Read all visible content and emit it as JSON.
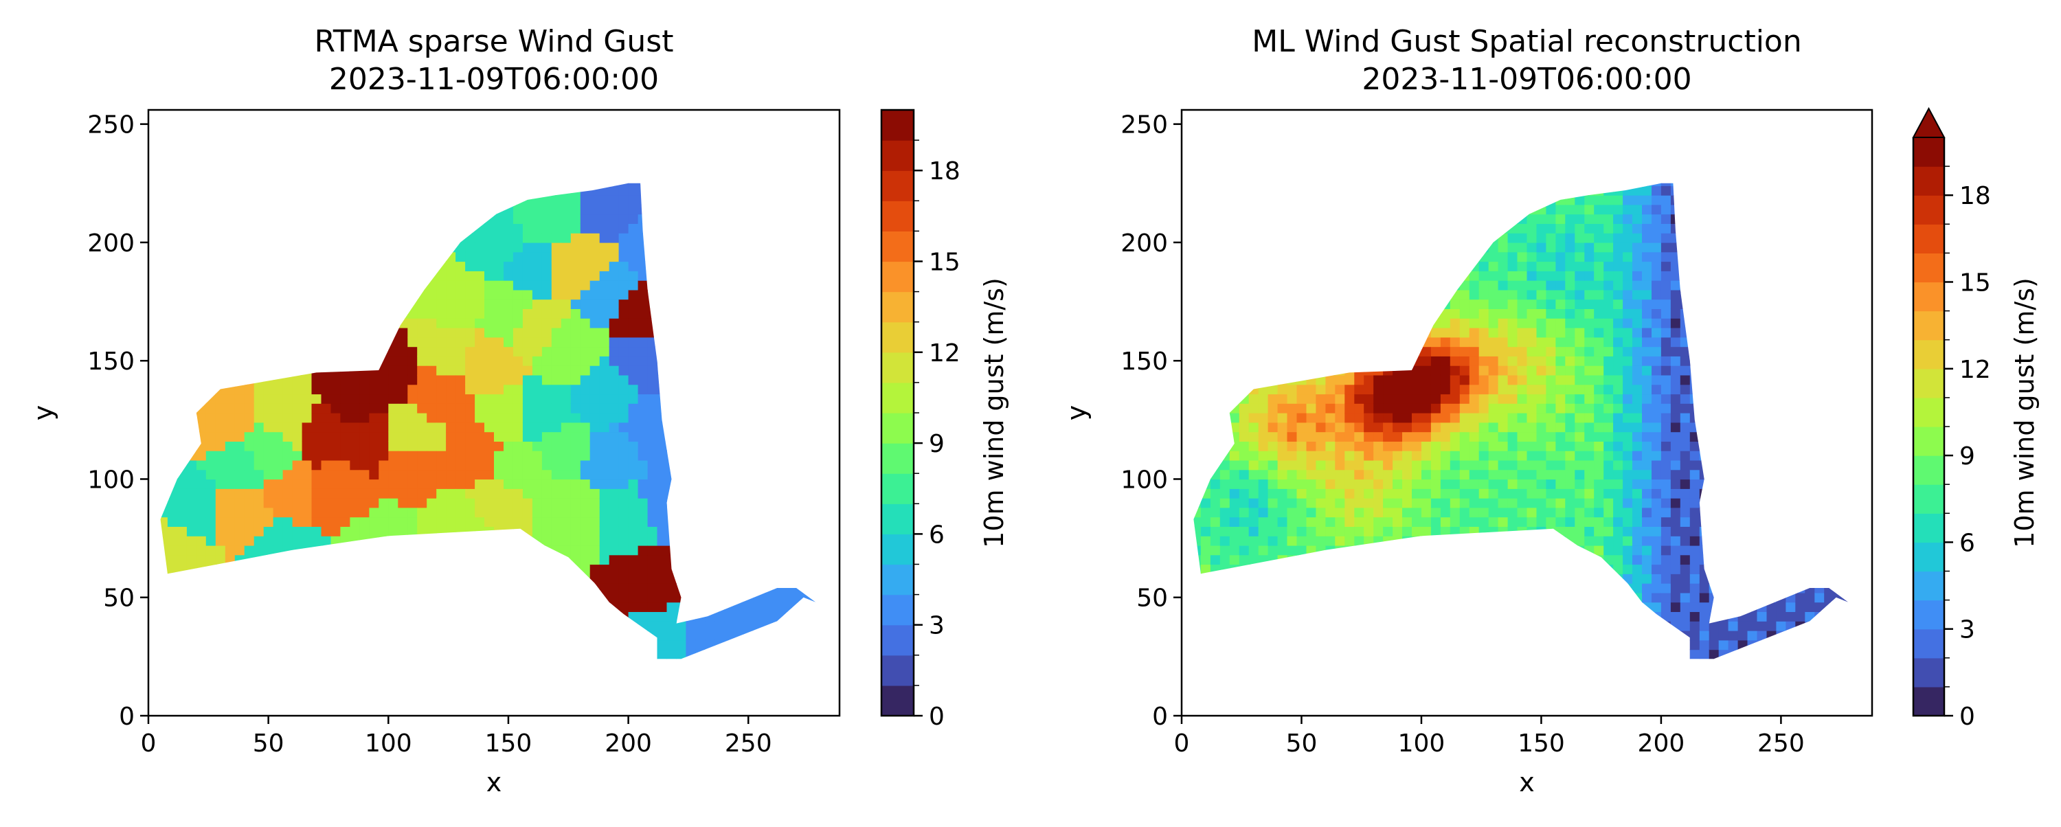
{
  "chart_data": [
    {
      "type": "heatmap",
      "title": "RTMA sparse Wind Gust",
      "subtitle": "2023-11-09T06:00:00",
      "xlabel": "x",
      "ylabel": "y",
      "xlim": [
        0,
        288
      ],
      "ylim": [
        0,
        256
      ],
      "xticks": [
        "0",
        "50",
        "100",
        "150",
        "200",
        "250"
      ],
      "yticks": [
        "0",
        "50",
        "100",
        "150",
        "200",
        "250"
      ],
      "colorbar": {
        "label": "10m wind gust (m/s)",
        "range": [
          0,
          20
        ],
        "ticks": [
          "0",
          "3",
          "6",
          "9",
          "12",
          "15",
          "18"
        ],
        "extend_max": false
      },
      "field": "sparse",
      "regions": [
        {
          "x": 85,
          "y": 133,
          "v": 19.5
        },
        {
          "x": 100,
          "y": 143,
          "v": 19
        },
        {
          "x": 72,
          "y": 120,
          "v": 18.5
        },
        {
          "x": 90,
          "y": 117,
          "v": 18.5
        },
        {
          "x": 190,
          "y": 30,
          "v": 19.5
        },
        {
          "x": 210,
          "y": 55,
          "v": 19
        },
        {
          "x": 205,
          "y": 170,
          "v": 19
        },
        {
          "x": 120,
          "y": 135,
          "v": 15
        },
        {
          "x": 110,
          "y": 105,
          "v": 15.5
        },
        {
          "x": 135,
          "y": 110,
          "v": 15
        },
        {
          "x": 80,
          "y": 95,
          "v": 15
        },
        {
          "x": 60,
          "y": 95,
          "v": 14
        },
        {
          "x": 40,
          "y": 85,
          "v": 13
        },
        {
          "x": 30,
          "y": 125,
          "v": 13
        },
        {
          "x": 140,
          "y": 150,
          "v": 12.5
        },
        {
          "x": 180,
          "y": 190,
          "v": 12
        },
        {
          "x": 12,
          "y": 70,
          "v": 11.5
        },
        {
          "x": 60,
          "y": 125,
          "v": 11
        },
        {
          "x": 150,
          "y": 125,
          "v": 10
        },
        {
          "x": 110,
          "y": 120,
          "v": 11
        },
        {
          "x": 128,
          "y": 175,
          "v": 10
        },
        {
          "x": 160,
          "y": 165,
          "v": 11
        },
        {
          "x": 175,
          "y": 155,
          "v": 9
        },
        {
          "x": 98,
          "y": 75,
          "v": 9
        },
        {
          "x": 130,
          "y": 80,
          "v": 10
        },
        {
          "x": 155,
          "y": 105,
          "v": 9
        },
        {
          "x": 170,
          "y": 115,
          "v": 8.5
        },
        {
          "x": 175,
          "y": 85,
          "v": 9
        },
        {
          "x": 200,
          "y": 85,
          "v": 6
        },
        {
          "x": 145,
          "y": 200,
          "v": 6
        },
        {
          "x": 165,
          "y": 210,
          "v": 7
        },
        {
          "x": 50,
          "y": 110,
          "v": 8
        },
        {
          "x": 40,
          "y": 105,
          "v": 7
        },
        {
          "x": 20,
          "y": 85,
          "v": 6
        },
        {
          "x": 55,
          "y": 70,
          "v": 6
        },
        {
          "x": 190,
          "y": 135,
          "v": 5
        },
        {
          "x": 195,
          "y": 110,
          "v": 4
        },
        {
          "x": 210,
          "y": 120,
          "v": 3
        },
        {
          "x": 215,
          "y": 90,
          "v": 3
        },
        {
          "x": 205,
          "y": 150,
          "v": 2
        },
        {
          "x": 210,
          "y": 200,
          "v": 3
        },
        {
          "x": 195,
          "y": 215,
          "v": 2
        },
        {
          "x": 190,
          "y": 180,
          "v": 4
        },
        {
          "x": 215,
          "y": 35,
          "v": 5
        },
        {
          "x": 230,
          "y": 35,
          "v": 3
        },
        {
          "x": 260,
          "y": 45,
          "v": 3
        },
        {
          "x": 165,
          "y": 125,
          "v": 6
        },
        {
          "x": 160,
          "y": 190,
          "v": 5
        },
        {
          "x": 150,
          "y": 170,
          "v": 9
        },
        {
          "x": 125,
          "y": 155,
          "v": 11
        },
        {
          "x": 145,
          "y": 90,
          "v": 11
        }
      ]
    },
    {
      "type": "heatmap",
      "title": "ML Wind Gust Spatial reconstruction",
      "subtitle": "2023-11-09T06:00:00",
      "xlabel": "x",
      "ylabel": "y",
      "xlim": [
        0,
        288
      ],
      "ylim": [
        0,
        256
      ],
      "xticks": [
        "0",
        "50",
        "100",
        "150",
        "200",
        "250"
      ],
      "yticks": [
        "0",
        "50",
        "100",
        "150",
        "200",
        "250"
      ],
      "colorbar": {
        "label": "10m wind gust (m/s)",
        "range": [
          0,
          20
        ],
        "ticks": [
          "0",
          "3",
          "6",
          "9",
          "12",
          "15",
          "18"
        ],
        "extend_max": true
      },
      "field": "smooth",
      "features": [
        {
          "x": 88,
          "y": 135,
          "amp": 12,
          "r": 16
        },
        {
          "x": 110,
          "y": 145,
          "amp": 7,
          "r": 13
        },
        {
          "x": 45,
          "y": 125,
          "amp": 6,
          "r": 16
        },
        {
          "x": 140,
          "y": 150,
          "amp": 4,
          "r": 18
        },
        {
          "x": 75,
          "y": 95,
          "amp": 3,
          "r": 16
        },
        {
          "x": 160,
          "y": 185,
          "amp": -2,
          "r": 20
        },
        {
          "x": 30,
          "y": 90,
          "amp": -2,
          "r": 12
        }
      ],
      "east_low": {
        "x_start": 175,
        "x_end": 205,
        "value": 2
      },
      "base_value": 8
    }
  ]
}
